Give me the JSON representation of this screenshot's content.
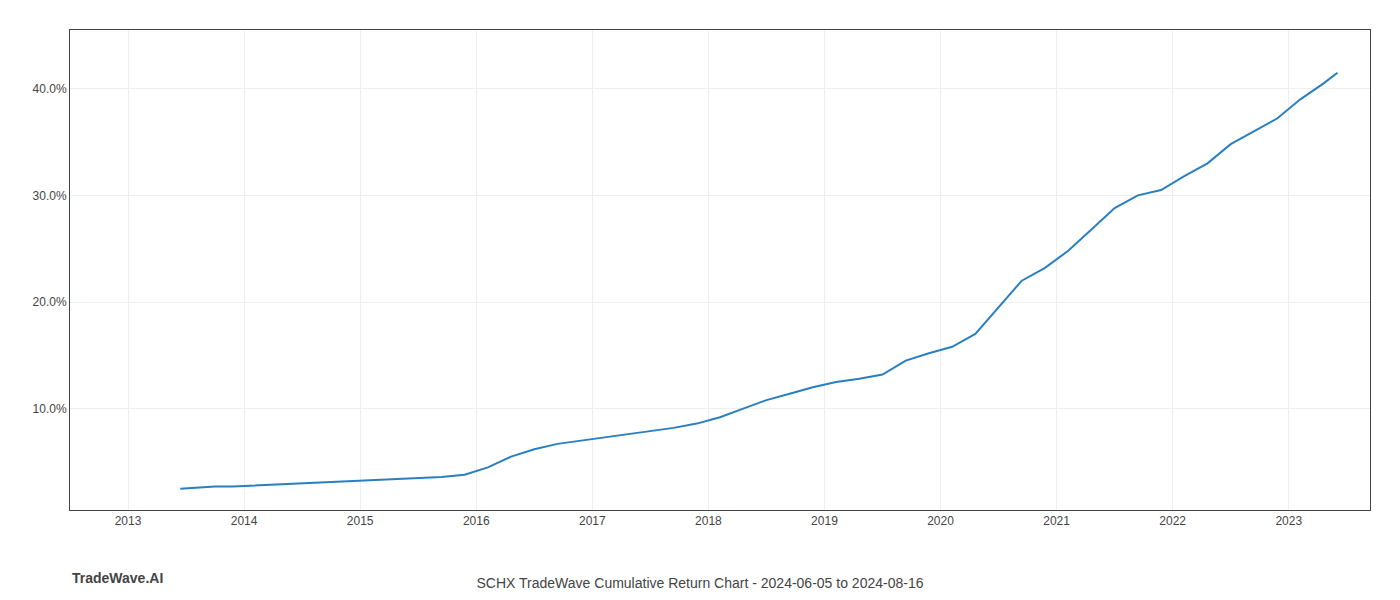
{
  "chart_data": {
    "type": "line",
    "title": "SCHX TradeWave Cumulative Return Chart - 2024-06-05 to 2024-08-16",
    "annotations": [
      {
        "text": "TradeWave.AI"
      }
    ],
    "color": "#2a7fc1",
    "grid": true,
    "xlim": [
      2012.5,
      2023.7
    ],
    "xticks": [
      2013,
      2014,
      2015,
      2016,
      2017,
      2018,
      2019,
      2020,
      2021,
      2022,
      2023
    ],
    "ylim": [
      0.005,
      0.455
    ],
    "yticks": [
      {
        "value": 0.1,
        "label": "10.0%"
      },
      {
        "value": 0.2,
        "label": "20.0%"
      },
      {
        "value": 0.3,
        "label": "30.0%"
      },
      {
        "value": 0.4,
        "label": "40.0%"
      }
    ],
    "x": [
      2013.45,
      2013.6,
      2013.75,
      2013.9,
      2014.1,
      2014.3,
      2014.5,
      2014.7,
      2014.9,
      2015.1,
      2015.3,
      2015.5,
      2015.7,
      2015.9,
      2016.1,
      2016.3,
      2016.5,
      2016.7,
      2016.9,
      2017.1,
      2017.3,
      2017.5,
      2017.7,
      2017.9,
      2018.1,
      2018.3,
      2018.5,
      2018.7,
      2018.9,
      2019.1,
      2019.3,
      2019.5,
      2019.7,
      2019.9,
      2020.1,
      2020.3,
      2020.5,
      2020.7,
      2020.9,
      2021.1,
      2021.3,
      2021.5,
      2021.7,
      2021.9,
      2022.1,
      2022.3,
      2022.5,
      2022.7,
      2022.9,
      2023.1,
      2023.3,
      2023.42
    ],
    "values": [
      0.025,
      0.026,
      0.027,
      0.027,
      0.028,
      0.029,
      0.03,
      0.031,
      0.032,
      0.033,
      0.034,
      0.035,
      0.036,
      0.038,
      0.045,
      0.055,
      0.062,
      0.067,
      0.07,
      0.073,
      0.076,
      0.079,
      0.082,
      0.086,
      0.092,
      0.1,
      0.108,
      0.114,
      0.12,
      0.125,
      0.128,
      0.132,
      0.145,
      0.152,
      0.158,
      0.17,
      0.195,
      0.22,
      0.232,
      0.248,
      0.268,
      0.288,
      0.3,
      0.305,
      0.318,
      0.33,
      0.348,
      0.36,
      0.372,
      0.39,
      0.405,
      0.415
    ]
  }
}
